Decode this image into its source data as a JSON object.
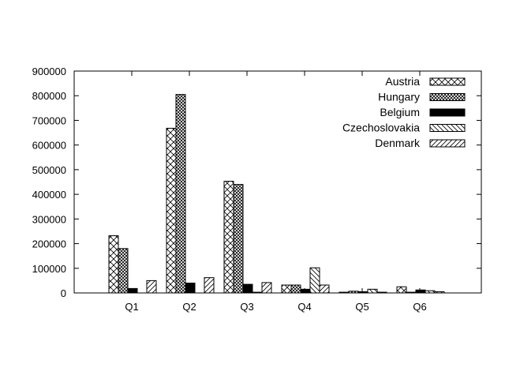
{
  "chart_data": {
    "type": "bar",
    "title": "",
    "xlabel": "",
    "ylabel": "",
    "categories": [
      "Q1",
      "Q2",
      "Q3",
      "Q4",
      "Q5",
      "Q6"
    ],
    "ylim": [
      0,
      900000
    ],
    "yticks": [
      0,
      100000,
      200000,
      300000,
      400000,
      500000,
      600000,
      700000,
      800000,
      900000
    ],
    "grid": false,
    "legend": "top-right",
    "series": [
      {
        "name": "Austria",
        "pattern": "crosshatch",
        "values": [
          232000,
          668000,
          453000,
          32000,
          3000,
          25000
        ]
      },
      {
        "name": "Hungary",
        "pattern": "dense-crosshatch",
        "values": [
          180000,
          805000,
          440000,
          32000,
          7000,
          3000
        ]
      },
      {
        "name": "Belgium",
        "pattern": "solid",
        "values": [
          18000,
          40000,
          35000,
          15000,
          5000,
          12000
        ]
      },
      {
        "name": "Czechoslovakia",
        "pattern": "backslash",
        "values": [
          0,
          0,
          3000,
          102000,
          15000,
          9000
        ]
      },
      {
        "name": "Denmark",
        "pattern": "slash",
        "values": [
          50000,
          62000,
          42000,
          32000,
          3000,
          5000
        ]
      }
    ],
    "colors": {
      "axis": "#000000",
      "fill": "#000000",
      "background": "#ffffff"
    }
  }
}
